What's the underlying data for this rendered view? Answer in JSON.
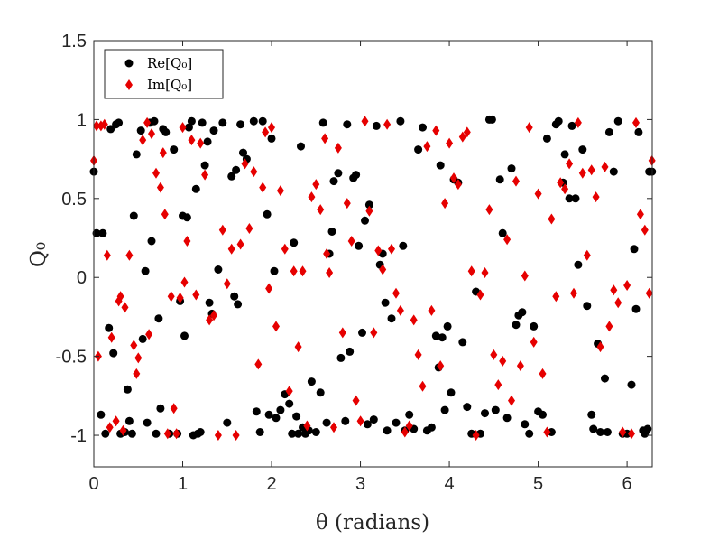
{
  "chart_data": {
    "type": "scatter",
    "title": "",
    "xlabel": "θ (radians)",
    "ylabel": "Q₀",
    "xlim": [
      0,
      6.2832
    ],
    "ylim": [
      -1.2,
      1.5
    ],
    "xticks": [
      0,
      1,
      2,
      3,
      4,
      5,
      6
    ],
    "yticks": [
      -1,
      -0.5,
      0,
      0.5,
      1,
      1.5
    ],
    "xtick_labels": [
      "0",
      "1",
      "2",
      "3",
      "4",
      "5",
      "6"
    ],
    "ytick_labels": [
      "-1",
      "-0.5",
      "0",
      "0.5",
      "1",
      "1.5"
    ],
    "grid": false,
    "legend_position": "top-left",
    "series": [
      {
        "name": "Re[Q₀]",
        "marker": "circle",
        "color": "#000000",
        "points": [
          [
            0.0,
            0.67
          ],
          [
            0.03,
            0.28
          ],
          [
            0.08,
            -0.87
          ],
          [
            0.1,
            0.28
          ],
          [
            0.13,
            -0.99
          ],
          [
            0.17,
            -0.32
          ],
          [
            0.19,
            0.94
          ],
          [
            0.22,
            -0.48
          ],
          [
            0.25,
            0.97
          ],
          [
            0.28,
            0.98
          ],
          [
            0.3,
            -0.99
          ],
          [
            0.35,
            -0.98
          ],
          [
            0.38,
            -0.71
          ],
          [
            0.4,
            -0.91
          ],
          [
            0.43,
            -0.99
          ],
          [
            0.45,
            0.39
          ],
          [
            0.48,
            0.78
          ],
          [
            0.53,
            0.93
          ],
          [
            0.55,
            -0.39
          ],
          [
            0.58,
            0.04
          ],
          [
            0.6,
            -0.92
          ],
          [
            0.63,
            0.98
          ],
          [
            0.65,
            0.23
          ],
          [
            0.68,
            0.99
          ],
          [
            0.7,
            -0.99
          ],
          [
            0.73,
            -0.26
          ],
          [
            0.75,
            -0.83
          ],
          [
            0.78,
            0.94
          ],
          [
            0.81,
            0.92
          ],
          [
            0.85,
            -0.99
          ],
          [
            0.9,
            0.81
          ],
          [
            0.94,
            -0.99
          ],
          [
            0.97,
            -0.15
          ],
          [
            1.0,
            0.39
          ],
          [
            1.02,
            -0.37
          ],
          [
            1.05,
            0.38
          ],
          [
            1.07,
            0.95
          ],
          [
            1.1,
            0.99
          ],
          [
            1.12,
            -1.0
          ],
          [
            1.15,
            0.56
          ],
          [
            1.17,
            -0.99
          ],
          [
            1.2,
            -0.98
          ],
          [
            1.22,
            0.98
          ],
          [
            1.25,
            0.71
          ],
          [
            1.28,
            0.86
          ],
          [
            1.3,
            -0.16
          ],
          [
            1.33,
            -0.23
          ],
          [
            1.35,
            0.93
          ],
          [
            1.4,
            0.05
          ],
          [
            1.45,
            0.98
          ],
          [
            1.5,
            -0.92
          ],
          [
            1.55,
            0.64
          ],
          [
            1.58,
            -0.12
          ],
          [
            1.6,
            0.68
          ],
          [
            1.62,
            -0.17
          ],
          [
            1.65,
            0.97
          ],
          [
            1.68,
            0.79
          ],
          [
            1.72,
            0.75
          ],
          [
            1.8,
            0.99
          ],
          [
            1.83,
            -0.85
          ],
          [
            1.87,
            -0.98
          ],
          [
            1.9,
            0.99
          ],
          [
            1.95,
            0.4
          ],
          [
            1.97,
            -0.87
          ],
          [
            2.0,
            0.88
          ],
          [
            2.03,
            0.04
          ],
          [
            2.05,
            -0.89
          ],
          [
            2.1,
            -0.84
          ],
          [
            2.15,
            -0.74
          ],
          [
            2.2,
            -0.8
          ],
          [
            2.23,
            -0.99
          ],
          [
            2.25,
            0.22
          ],
          [
            2.28,
            -0.88
          ],
          [
            2.3,
            -0.99
          ],
          [
            2.33,
            0.83
          ],
          [
            2.35,
            -0.95
          ],
          [
            2.38,
            -0.99
          ],
          [
            2.42,
            -0.97
          ],
          [
            2.45,
            -0.66
          ],
          [
            2.5,
            -0.98
          ],
          [
            2.55,
            -0.73
          ],
          [
            2.58,
            0.98
          ],
          [
            2.62,
            -0.92
          ],
          [
            2.65,
            0.15
          ],
          [
            2.68,
            0.29
          ],
          [
            2.7,
            0.61
          ],
          [
            2.75,
            0.66
          ],
          [
            2.78,
            -0.51
          ],
          [
            2.83,
            -0.91
          ],
          [
            2.85,
            0.97
          ],
          [
            2.88,
            -0.47
          ],
          [
            2.92,
            0.63
          ],
          [
            2.95,
            0.65
          ],
          [
            2.98,
            0.2
          ],
          [
            3.02,
            -0.35
          ],
          [
            3.05,
            0.36
          ],
          [
            3.08,
            -0.93
          ],
          [
            3.1,
            0.46
          ],
          [
            3.15,
            -0.9
          ],
          [
            3.18,
            0.96
          ],
          [
            3.22,
            0.08
          ],
          [
            3.25,
            0.15
          ],
          [
            3.28,
            -0.16
          ],
          [
            3.3,
            -0.97
          ],
          [
            3.35,
            -0.26
          ],
          [
            3.4,
            -0.92
          ],
          [
            3.45,
            0.99
          ],
          [
            3.48,
            0.2
          ],
          [
            3.5,
            -0.97
          ],
          [
            3.55,
            -0.87
          ],
          [
            3.6,
            -0.96
          ],
          [
            3.65,
            0.81
          ],
          [
            3.7,
            0.95
          ],
          [
            3.75,
            -0.97
          ],
          [
            3.8,
            -0.95
          ],
          [
            3.85,
            -0.37
          ],
          [
            3.88,
            -0.57
          ],
          [
            3.9,
            0.71
          ],
          [
            3.92,
            -0.38
          ],
          [
            3.95,
            -0.84
          ],
          [
            3.98,
            -0.31
          ],
          [
            4.02,
            -0.73
          ],
          [
            4.05,
            0.62
          ],
          [
            4.1,
            0.6
          ],
          [
            4.15,
            -0.41
          ],
          [
            4.2,
            -0.82
          ],
          [
            4.25,
            -0.99
          ],
          [
            4.3,
            -0.09
          ],
          [
            4.35,
            -0.99
          ],
          [
            4.4,
            -0.86
          ],
          [
            4.45,
            1.0
          ],
          [
            4.48,
            1.0
          ],
          [
            4.52,
            -0.84
          ],
          [
            4.57,
            0.62
          ],
          [
            4.6,
            0.28
          ],
          [
            4.65,
            -0.89
          ],
          [
            4.7,
            0.69
          ],
          [
            4.75,
            -0.3
          ],
          [
            4.78,
            -0.24
          ],
          [
            4.82,
            -0.22
          ],
          [
            4.85,
            -0.93
          ],
          [
            4.9,
            -0.99
          ],
          [
            4.95,
            -0.31
          ],
          [
            5.0,
            -0.85
          ],
          [
            5.05,
            -0.87
          ],
          [
            5.1,
            0.88
          ],
          [
            5.15,
            -0.98
          ],
          [
            5.2,
            0.97
          ],
          [
            5.23,
            0.99
          ],
          [
            5.28,
            0.6
          ],
          [
            5.3,
            0.78
          ],
          [
            5.35,
            0.5
          ],
          [
            5.38,
            0.96
          ],
          [
            5.42,
            0.5
          ],
          [
            5.45,
            0.08
          ],
          [
            5.5,
            0.81
          ],
          [
            5.55,
            -0.18
          ],
          [
            5.6,
            -0.87
          ],
          [
            5.62,
            -0.96
          ],
          [
            5.67,
            -0.42
          ],
          [
            5.7,
            -0.98
          ],
          [
            5.75,
            -0.64
          ],
          [
            5.78,
            -0.98
          ],
          [
            5.8,
            0.92
          ],
          [
            5.85,
            0.67
          ],
          [
            5.9,
            0.99
          ],
          [
            5.95,
            -0.99
          ],
          [
            6.0,
            -0.99
          ],
          [
            6.05,
            -0.68
          ],
          [
            6.08,
            0.18
          ],
          [
            6.1,
            -0.2
          ],
          [
            6.13,
            0.92
          ],
          [
            6.18,
            -0.97
          ],
          [
            6.2,
            -0.99
          ],
          [
            6.23,
            -0.96
          ],
          [
            6.25,
            0.67
          ],
          [
            6.28,
            0.67
          ]
        ]
      },
      {
        "name": "Im[Q₀]",
        "marker": "diamond",
        "color": "#e60000",
        "points": [
          [
            0.0,
            0.74
          ],
          [
            0.03,
            0.96
          ],
          [
            0.05,
            -0.5
          ],
          [
            0.08,
            0.96
          ],
          [
            0.12,
            0.97
          ],
          [
            0.15,
            0.14
          ],
          [
            0.18,
            -0.95
          ],
          [
            0.2,
            -0.38
          ],
          [
            0.25,
            -0.91
          ],
          [
            0.28,
            -0.15
          ],
          [
            0.3,
            -0.12
          ],
          [
            0.33,
            -0.97
          ],
          [
            0.35,
            -0.19
          ],
          [
            0.4,
            0.14
          ],
          [
            0.45,
            -0.43
          ],
          [
            0.48,
            -0.61
          ],
          [
            0.5,
            -0.51
          ],
          [
            0.55,
            0.87
          ],
          [
            0.6,
            0.98
          ],
          [
            0.62,
            -0.36
          ],
          [
            0.65,
            0.91
          ],
          [
            0.7,
            0.66
          ],
          [
            0.75,
            0.57
          ],
          [
            0.78,
            0.79
          ],
          [
            0.8,
            0.4
          ],
          [
            0.83,
            -0.99
          ],
          [
            0.87,
            -0.12
          ],
          [
            0.9,
            -0.83
          ],
          [
            0.93,
            -0.99
          ],
          [
            0.97,
            -0.13
          ],
          [
            1.0,
            0.95
          ],
          [
            1.02,
            -0.03
          ],
          [
            1.05,
            0.23
          ],
          [
            1.1,
            0.87
          ],
          [
            1.15,
            -0.11
          ],
          [
            1.2,
            0.85
          ],
          [
            1.25,
            0.65
          ],
          [
            1.3,
            -0.27
          ],
          [
            1.35,
            -0.24
          ],
          [
            1.4,
            -1.0
          ],
          [
            1.45,
            0.3
          ],
          [
            1.5,
            -0.04
          ],
          [
            1.55,
            0.18
          ],
          [
            1.6,
            -1.0
          ],
          [
            1.65,
            0.21
          ],
          [
            1.7,
            0.72
          ],
          [
            1.75,
            0.31
          ],
          [
            1.8,
            0.67
          ],
          [
            1.85,
            -0.55
          ],
          [
            1.9,
            0.57
          ],
          [
            1.93,
            0.92
          ],
          [
            1.97,
            -0.07
          ],
          [
            2.0,
            0.95
          ],
          [
            2.05,
            -0.31
          ],
          [
            2.1,
            0.55
          ],
          [
            2.15,
            0.18
          ],
          [
            2.2,
            -0.72
          ],
          [
            2.25,
            0.04
          ],
          [
            2.3,
            -0.44
          ],
          [
            2.35,
            0.04
          ],
          [
            2.4,
            -0.94
          ],
          [
            2.45,
            0.51
          ],
          [
            2.5,
            0.59
          ],
          [
            2.55,
            0.43
          ],
          [
            2.6,
            0.88
          ],
          [
            2.62,
            0.15
          ],
          [
            2.65,
            0.03
          ],
          [
            2.7,
            -0.95
          ],
          [
            2.75,
            0.82
          ],
          [
            2.8,
            -0.35
          ],
          [
            2.85,
            0.47
          ],
          [
            2.9,
            0.23
          ],
          [
            2.95,
            -0.78
          ],
          [
            3.0,
            -0.91
          ],
          [
            3.05,
            0.99
          ],
          [
            3.1,
            0.42
          ],
          [
            3.15,
            -0.35
          ],
          [
            3.2,
            0.17
          ],
          [
            3.25,
            0.05
          ],
          [
            3.3,
            0.97
          ],
          [
            3.35,
            0.18
          ],
          [
            3.4,
            -0.1
          ],
          [
            3.45,
            -0.21
          ],
          [
            3.5,
            -0.98
          ],
          [
            3.55,
            -0.94
          ],
          [
            3.6,
            -0.27
          ],
          [
            3.65,
            -0.49
          ],
          [
            3.7,
            -0.69
          ],
          [
            3.75,
            0.83
          ],
          [
            3.8,
            -0.21
          ],
          [
            3.85,
            0.93
          ],
          [
            3.9,
            -0.56
          ],
          [
            3.95,
            0.47
          ],
          [
            4.0,
            0.85
          ],
          [
            4.05,
            0.63
          ],
          [
            4.1,
            0.59
          ],
          [
            4.15,
            0.89
          ],
          [
            4.2,
            0.92
          ],
          [
            4.25,
            0.04
          ],
          [
            4.3,
            -1.0
          ],
          [
            4.35,
            -0.11
          ],
          [
            4.4,
            0.03
          ],
          [
            4.45,
            0.43
          ],
          [
            4.5,
            -0.49
          ],
          [
            4.55,
            -0.68
          ],
          [
            4.6,
            -0.53
          ],
          [
            4.65,
            0.24
          ],
          [
            4.7,
            -0.78
          ],
          [
            4.75,
            0.61
          ],
          [
            4.8,
            -0.56
          ],
          [
            4.85,
            0.01
          ],
          [
            4.9,
            0.95
          ],
          [
            4.95,
            -0.41
          ],
          [
            5.0,
            0.53
          ],
          [
            5.05,
            -0.61
          ],
          [
            5.1,
            -0.98
          ],
          [
            5.15,
            0.37
          ],
          [
            5.2,
            -0.12
          ],
          [
            5.25,
            0.6
          ],
          [
            5.3,
            0.56
          ],
          [
            5.35,
            0.72
          ],
          [
            5.4,
            -0.1
          ],
          [
            5.45,
            0.98
          ],
          [
            5.5,
            0.66
          ],
          [
            5.55,
            0.14
          ],
          [
            5.6,
            0.68
          ],
          [
            5.65,
            0.51
          ],
          [
            5.7,
            -0.44
          ],
          [
            5.75,
            0.7
          ],
          [
            5.8,
            -0.31
          ],
          [
            5.85,
            -0.08
          ],
          [
            5.9,
            -0.16
          ],
          [
            5.95,
            -0.98
          ],
          [
            6.0,
            -0.05
          ],
          [
            6.05,
            -0.99
          ],
          [
            6.1,
            0.98
          ],
          [
            6.15,
            0.4
          ],
          [
            6.2,
            0.3
          ],
          [
            6.25,
            -0.1
          ],
          [
            6.28,
            0.74
          ]
        ]
      }
    ]
  }
}
